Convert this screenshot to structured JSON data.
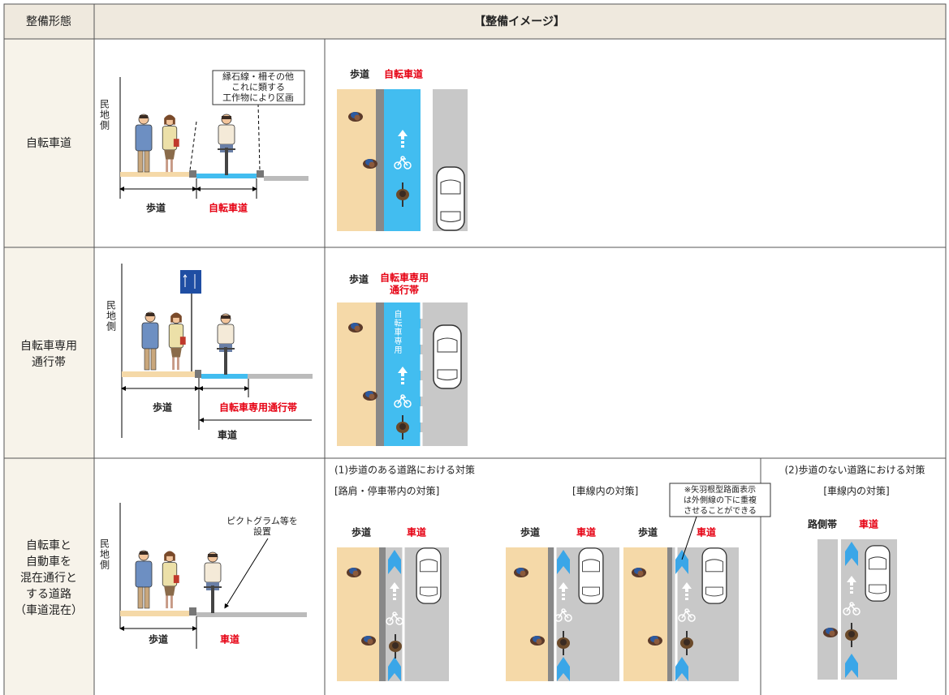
{
  "header": {
    "form": "整備形態",
    "image": "【整備イメージ】"
  },
  "rows": [
    {
      "label": [
        "自転車道"
      ],
      "section": {
        "side": "民地側",
        "callout": [
          "縁石線・柵その他",
          "これに類する",
          "工作物により区画"
        ],
        "walk": "歩道",
        "bike": "自転車道"
      },
      "plan": {
        "walk": "歩道",
        "bike": "自転車道"
      }
    },
    {
      "label": [
        "自転車専用",
        "通行帯"
      ],
      "section": {
        "side": "民地側",
        "walk": "歩道",
        "bike": "自転車専用通行帯",
        "road": "車道"
      },
      "plan": {
        "walk": "歩道",
        "bike": [
          "自転車専用",
          "通行帯"
        ],
        "lane_text": "自転車専用"
      }
    },
    {
      "label": [
        "自転車と",
        "自動車を",
        "混在通行と",
        "する道路",
        "（車道混在）"
      ],
      "section": {
        "side": "民地側",
        "callout": [
          "ピクトグラム等を",
          "設置"
        ],
        "walk": "歩道",
        "road": "車道"
      },
      "plan": {
        "part1": {
          "title": "(1)歩道のある道路における対策",
          "shoulder": "[路肩・停車帯内の対策]",
          "lane": "[車線内の対策]",
          "note": [
            "※矢羽根型路面表示",
            "は外側線の下に重複",
            "させることができる"
          ],
          "panels": [
            {
              "walk": "歩道",
              "road": "車道"
            },
            {
              "walk": "歩道",
              "road": "車道"
            },
            {
              "walk": "歩道",
              "road": "車道"
            }
          ]
        },
        "part2": {
          "title": "(2)歩道のない道路における対策",
          "lane": "[車線内の対策]",
          "side_strip": "路側帯",
          "road": "車道"
        }
      }
    }
  ]
}
